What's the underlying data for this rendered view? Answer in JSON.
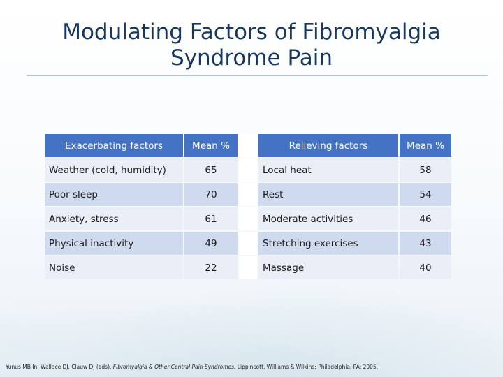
{
  "slide": {
    "title_line1": "Modulating Factors of Fibromyalgia",
    "title_line2": "Syndrome Pain"
  },
  "table": {
    "headers": {
      "exacerbating": "Exacerbating factors",
      "mean1": "Mean %",
      "relieving": "Relieving factors",
      "mean2": "Mean %"
    },
    "rows": [
      {
        "exacerbating": "Weather (cold, humidity)",
        "ex_mean": "65",
        "relieving": "Local heat",
        "rel_mean": "58"
      },
      {
        "exacerbating": "Poor sleep",
        "ex_mean": "70",
        "relieving": "Rest",
        "rel_mean": "54"
      },
      {
        "exacerbating": "Anxiety, stress",
        "ex_mean": "61",
        "relieving": "Moderate activities",
        "rel_mean": "46"
      },
      {
        "exacerbating": "Physical inactivity",
        "ex_mean": "49",
        "relieving": "Stretching exercises",
        "rel_mean": "43"
      },
      {
        "exacerbating": "Noise",
        "ex_mean": "22",
        "relieving": "Massage",
        "rel_mean": "40"
      }
    ]
  },
  "citation": {
    "part1": "Yunus MB In: Wallace DJ, Clauw DJ (eds). ",
    "italic": "Fibromyalgia & Other Central Pain Syndromes.",
    "part2": " Lippincott, Williams & Wilkins; Philadelphia, PA: 2005."
  },
  "colors": {
    "title": "#17375e",
    "header_bg": "#4472c4",
    "row_light": "#e9eef7",
    "row_dark": "#d0daef"
  }
}
